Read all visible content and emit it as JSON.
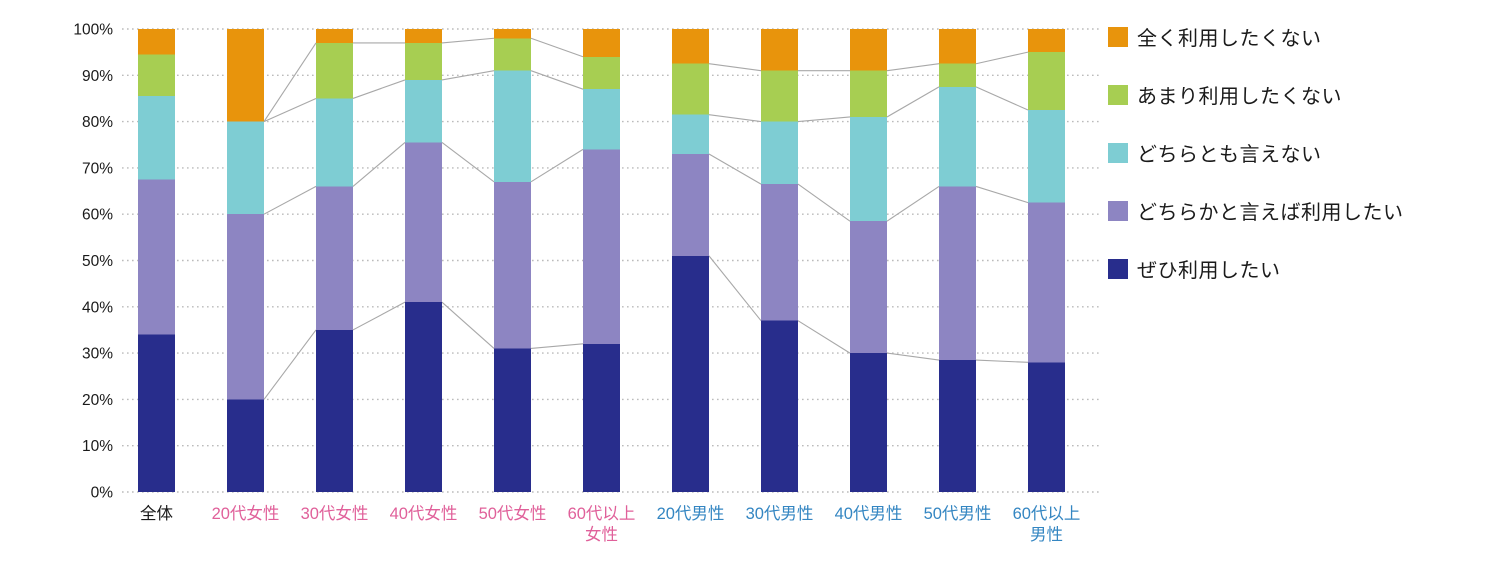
{
  "chart_data": {
    "type": "bar",
    "variant": "stacked-100-percent-vertical",
    "title": "",
    "xlabel": "",
    "ylabel": "",
    "unit": "%",
    "ylim": [
      0,
      100
    ],
    "y_ticks": [
      "0%",
      "10%",
      "20%",
      "30%",
      "40%",
      "50%",
      "60%",
      "70%",
      "80%",
      "90%",
      "100%"
    ],
    "grid": "dotted-horizontal",
    "legend_position": "right",
    "axis_text_color": "#1a1a1a",
    "gridline_color": "#bbbbbb",
    "connector_color": "#a8a8a8",
    "female_label_color": "#e0609a",
    "male_label_color": "#3486c2",
    "categories": [
      {
        "label": "全体",
        "label2": "",
        "color": "#1a1a1a"
      },
      {
        "label": "20代女性",
        "label2": "",
        "color": "#e0609a"
      },
      {
        "label": "30代女性",
        "label2": "",
        "color": "#e0609a"
      },
      {
        "label": "40代女性",
        "label2": "",
        "color": "#e0609a"
      },
      {
        "label": "50代女性",
        "label2": "",
        "color": "#e0609a"
      },
      {
        "label": "60代以上",
        "label2": "女性",
        "color": "#e0609a"
      },
      {
        "label": "20代男性",
        "label2": "",
        "color": "#3486c2"
      },
      {
        "label": "30代男性",
        "label2": "",
        "color": "#3486c2"
      },
      {
        "label": "40代男性",
        "label2": "",
        "color": "#3486c2"
      },
      {
        "label": "50代男性",
        "label2": "",
        "color": "#3486c2"
      },
      {
        "label": "60代以上",
        "label2": "男性",
        "color": "#3486c2"
      }
    ],
    "series": [
      {
        "name": "ぜひ利用したい",
        "color": "#282d8c",
        "values": [
          34,
          20,
          35,
          41,
          31,
          32,
          51,
          37,
          30,
          28.5,
          28
        ]
      },
      {
        "name": "どちらかと言えば利用したい",
        "color": "#8d85c2",
        "values": [
          33.5,
          40,
          31,
          34.5,
          36,
          42,
          22,
          29.5,
          28.5,
          37.5,
          34.5
        ]
      },
      {
        "name": "どちらとも言えない",
        "color": "#7ecdd3",
        "values": [
          18,
          20,
          19,
          13.5,
          24,
          13,
          8.5,
          13.5,
          22.5,
          21.5,
          20
        ]
      },
      {
        "name": "あまり利用したくない",
        "color": "#a7ce52",
        "values": [
          9,
          0,
          12,
          8,
          7,
          7,
          11,
          11,
          10,
          5,
          12.5
        ]
      },
      {
        "name": "全く利用したくない",
        "color": "#e8940c",
        "values": [
          5.5,
          20,
          3,
          3,
          2,
          6,
          7.5,
          9,
          9,
          7.5,
          5
        ]
      }
    ],
    "legend": [
      {
        "label": "全く利用したくない",
        "color": "#e8940c"
      },
      {
        "label": "あまり利用したくない",
        "color": "#a7ce52"
      },
      {
        "label": "どちらとも言えない",
        "color": "#7ecdd3"
      },
      {
        "label": "どちらかと言えば利用したい",
        "color": "#8d85c2"
      },
      {
        "label": "ぜひ利用したい",
        "color": "#282d8c"
      }
    ],
    "connector_groups": [
      [
        1,
        2,
        3,
        4,
        5
      ],
      [
        6,
        7,
        8,
        9,
        10
      ]
    ]
  }
}
